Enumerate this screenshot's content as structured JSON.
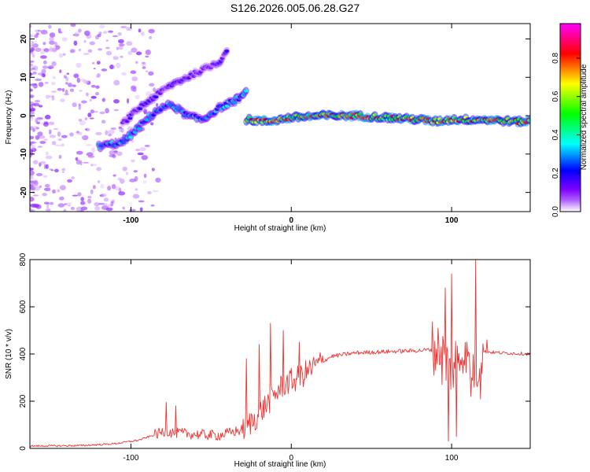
{
  "title": "S126.2026.005.06.28.G27",
  "colors": {
    "snr_line": "#ee3333",
    "axes": "#000000",
    "background": "#ffffff"
  },
  "chart_data": [
    {
      "type": "heatmap",
      "name": "spectrogram",
      "title": "S126.2026.005.06.28.G27",
      "xlabel": "Height of straight line (km)",
      "ylabel": "Frequency (Hz)",
      "xlim": [
        -163,
        149
      ],
      "ylim": [
        -25,
        24
      ],
      "xticks": [
        -100,
        0,
        100
      ],
      "yticks": [
        -20,
        -10,
        0,
        10,
        20
      ],
      "colorbar": {
        "label": "Normalized spectral amplitude",
        "range": [
          0,
          0.98
        ],
        "ticks": [
          0.0,
          0.2,
          0.4,
          0.6,
          0.8
        ],
        "colormap": [
          "#ffffff",
          "#7b00ff",
          "#0000ff",
          "#00ffff",
          "#00ff00",
          "#ffff00",
          "#ff0000",
          "#ff00ff"
        ]
      },
      "ridges": [
        {
          "description": "rising track",
          "x": [
            -120,
            -105,
            -95,
            -85,
            -75,
            -65,
            -55,
            -45,
            -35,
            -28
          ],
          "y": [
            -8,
            -7,
            -3,
            1,
            3,
            0,
            -1,
            2,
            4,
            6
          ],
          "amp": 0.35
        },
        {
          "description": "upper rising track",
          "x": [
            -105,
            -95,
            -85,
            -75,
            -65,
            -55,
            -45,
            -40
          ],
          "y": [
            -2,
            2,
            5,
            8,
            10,
            12,
            14,
            17
          ],
          "amp": 0.2
        },
        {
          "description": "main track",
          "x": [
            -28,
            -15,
            0,
            20,
            40,
            60,
            80,
            90,
            100,
            110,
            120,
            140,
            149
          ],
          "y": [
            -1,
            -1.5,
            -0.5,
            0,
            0,
            -0.5,
            -1,
            -1.5,
            -1,
            -1,
            -1,
            -1.5,
            -1.5
          ],
          "amp": 0.75
        }
      ]
    },
    {
      "type": "line",
      "name": "snr",
      "xlabel": "Height of straight line (km)",
      "ylabel": "SNR (10 * v/v)",
      "xlim": [
        -163,
        149
      ],
      "ylim": [
        0,
        800
      ],
      "xticks": [
        -100,
        0,
        100
      ],
      "yticks": [
        0,
        200,
        400,
        600,
        800
      ],
      "trend_x": [
        -163,
        -130,
        -110,
        -95,
        -80,
        -60,
        -45,
        -30,
        -22,
        -15,
        -10,
        -5,
        5,
        15,
        25,
        40,
        60,
        80,
        90,
        95,
        100,
        105,
        110,
        115,
        120,
        130,
        149
      ],
      "trend_y": [
        10,
        12,
        20,
        35,
        70,
        60,
        55,
        80,
        130,
        190,
        230,
        270,
        300,
        350,
        390,
        405,
        410,
        415,
        420,
        380,
        350,
        400,
        390,
        300,
        410,
        405,
        400
      ],
      "spikes": [
        {
          "x": -78,
          "y": 195
        },
        {
          "x": -72,
          "y": 180
        },
        {
          "x": -28,
          "y": 380
        },
        {
          "x": -20,
          "y": 440
        },
        {
          "x": -13,
          "y": 530
        },
        {
          "x": -5,
          "y": 500
        },
        {
          "x": 5,
          "y": 450
        },
        {
          "x": 92,
          "y": 450
        },
        {
          "x": 96,
          "y": 680
        },
        {
          "x": 98,
          "y": 30
        },
        {
          "x": 100,
          "y": 740
        },
        {
          "x": 103,
          "y": 50
        },
        {
          "x": 112,
          "y": 220
        },
        {
          "x": 115,
          "y": 800
        },
        {
          "x": 118,
          "y": 210
        },
        {
          "x": 122,
          "y": 460
        }
      ]
    }
  ]
}
